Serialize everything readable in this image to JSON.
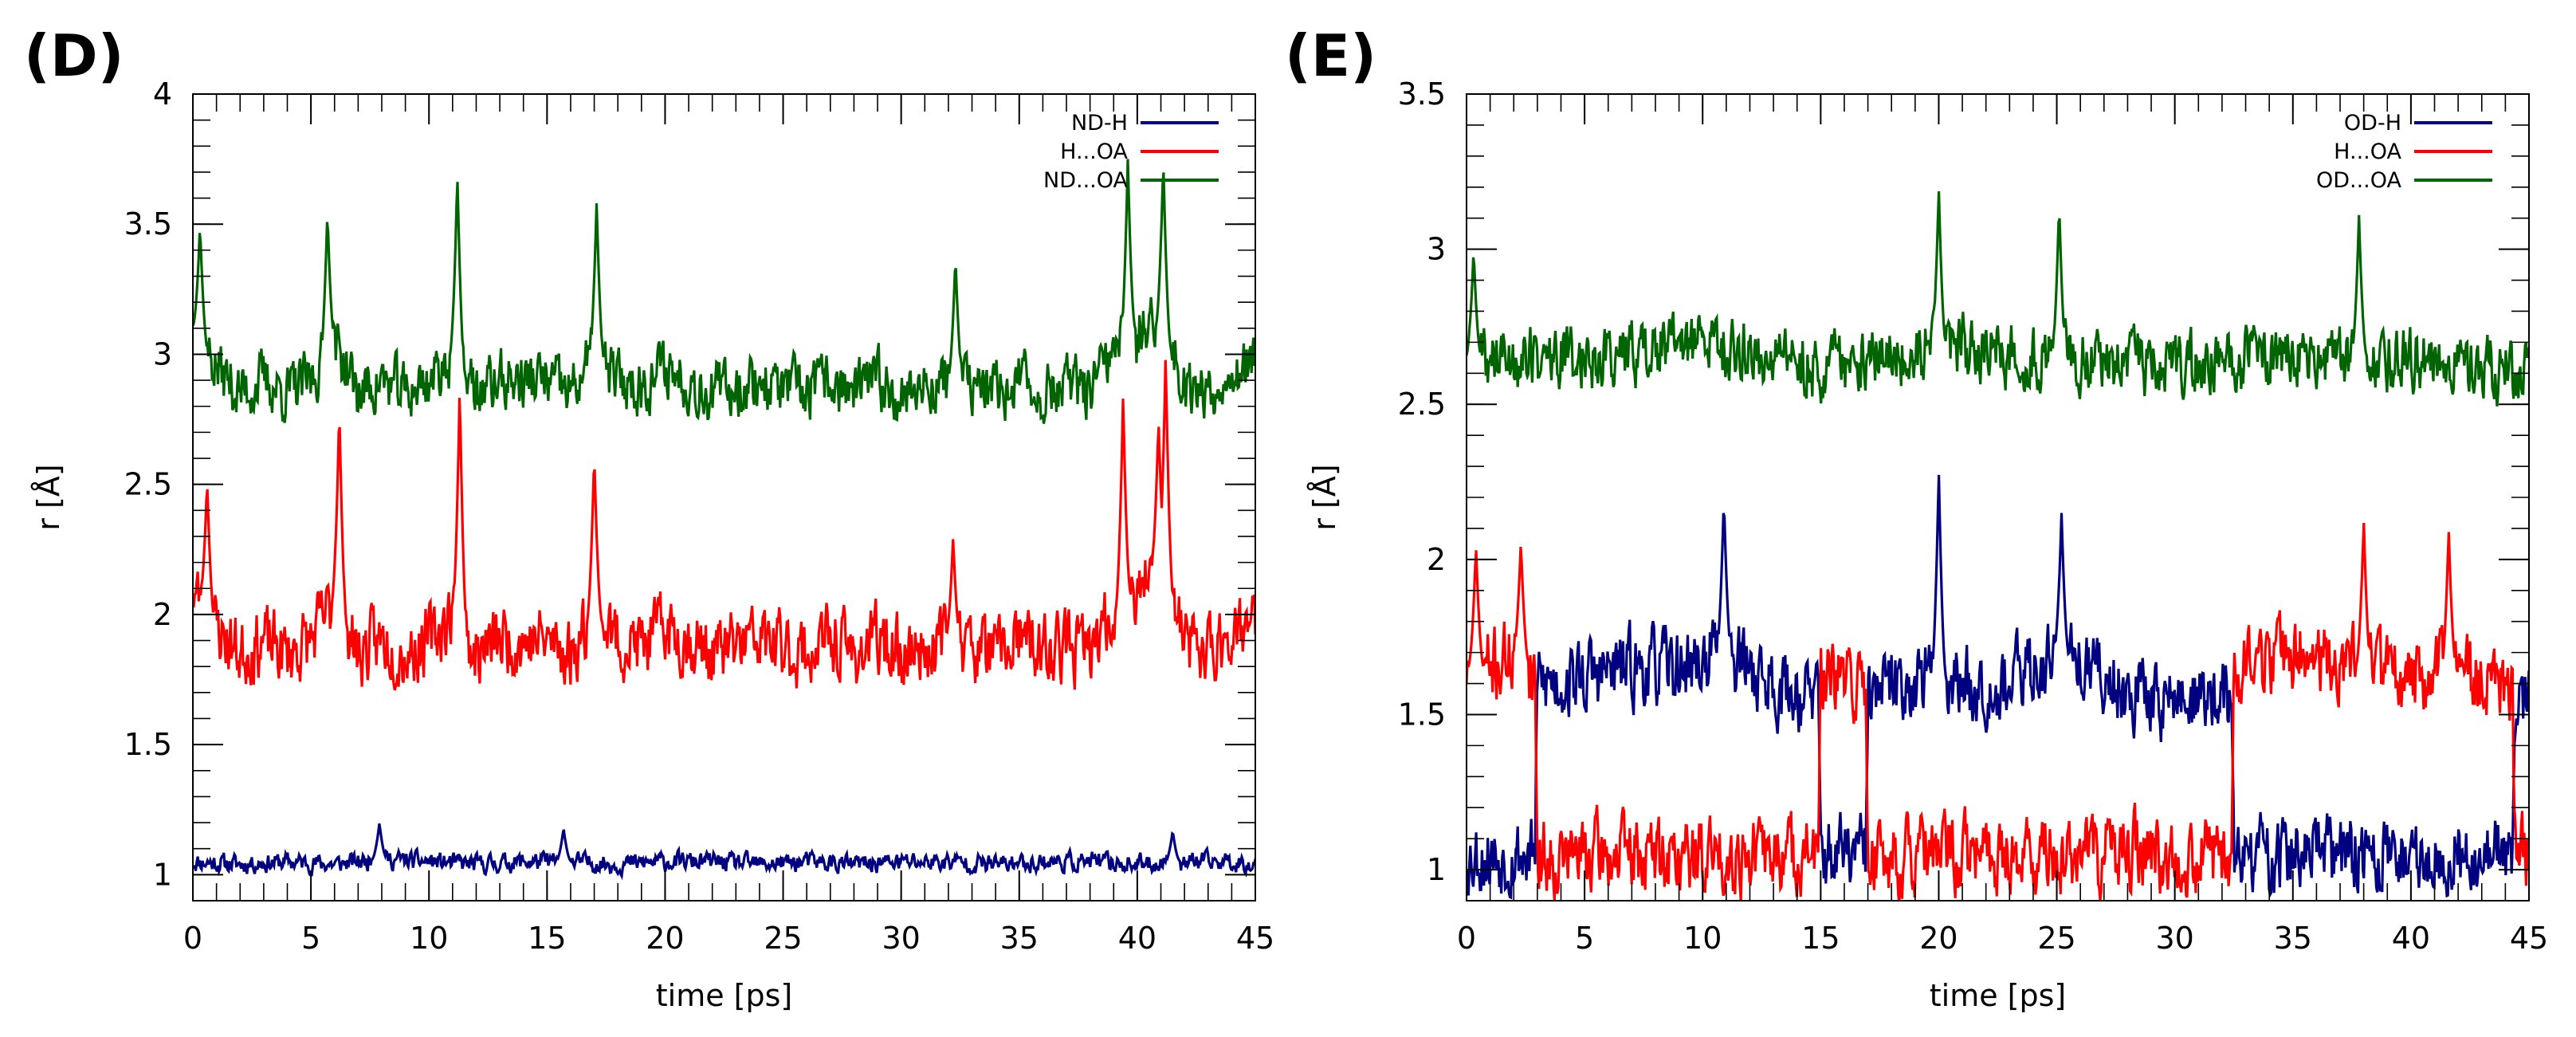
{
  "chart_data": [
    {
      "type": "line",
      "panel_label": "(D)",
      "xlabel": "time [ps]",
      "ylabel": "r [Å]",
      "xlim": [
        0,
        45
      ],
      "ylim": [
        0.9,
        4.0
      ],
      "xticks": [
        0,
        5,
        10,
        15,
        20,
        25,
        30,
        35,
        40,
        45
      ],
      "xtick_labels": [
        "0",
        "5",
        "10",
        "15",
        "20",
        "25",
        "30",
        "35",
        "40",
        "45"
      ],
      "yticks": [
        1,
        1.5,
        2,
        2.5,
        3,
        3.5,
        4
      ],
      "ytick_labels": [
        "1",
        "1.5",
        "2",
        "2.5",
        "3",
        "3.5",
        "4"
      ],
      "legend_position": "top-right",
      "series": [
        {
          "name": "ND-H",
          "color": "#000080",
          "x": [
            0,
            2,
            4,
            6,
            8,
            10,
            12,
            14,
            16,
            18,
            20,
            22,
            24,
            26,
            28,
            30,
            32,
            34,
            36,
            38,
            40,
            42,
            44,
            45
          ],
          "y": [
            1.05,
            1.04,
            1.05,
            1.04,
            1.06,
            1.05,
            1.04,
            1.05,
            1.05,
            1.04,
            1.05,
            1.05,
            1.04,
            1.05,
            1.04,
            1.05,
            1.05,
            1.04,
            1.05,
            1.05,
            1.04,
            1.05,
            1.05,
            1.04
          ],
          "noise": 0.035,
          "seed": 11,
          "spikes": [
            [
              7.9,
              1.2
            ],
            [
              15.7,
              1.18
            ],
            [
              41.5,
              1.17
            ]
          ]
        },
        {
          "name": "H...OA",
          "color": "#ff0000",
          "x": [
            0,
            1,
            2,
            3,
            4,
            5,
            6,
            7,
            8,
            9,
            10,
            11,
            12,
            13,
            14,
            15,
            16,
            17,
            18,
            19,
            20,
            21,
            22,
            23,
            24,
            25,
            26,
            27,
            28,
            29,
            30,
            31,
            32,
            33,
            34,
            35,
            36,
            37,
            38,
            39,
            40,
            41,
            42,
            43,
            44,
            45
          ],
          "y": [
            2.1,
            1.95,
            1.85,
            1.9,
            1.85,
            1.9,
            2.05,
            1.85,
            1.9,
            1.85,
            1.9,
            2.0,
            1.85,
            1.9,
            1.9,
            1.9,
            1.85,
            2.0,
            1.9,
            1.88,
            1.95,
            1.9,
            1.85,
            1.88,
            1.9,
            1.87,
            1.85,
            1.9,
            1.85,
            1.9,
            1.85,
            1.88,
            1.9,
            1.88,
            1.85,
            1.9,
            1.85,
            1.88,
            1.85,
            2.0,
            2.1,
            2.2,
            1.9,
            1.85,
            1.95,
            1.95
          ],
          "noise": 0.13,
          "seed": 23,
          "spikes": [
            [
              0.6,
              2.52
            ],
            [
              6.2,
              2.8
            ],
            [
              11.3,
              2.88
            ],
            [
              17.0,
              2.62
            ],
            [
              32.2,
              2.3
            ],
            [
              39.4,
              2.85
            ],
            [
              40.9,
              2.75
            ],
            [
              41.2,
              3.0
            ]
          ]
        },
        {
          "name": "ND...OA",
          "color": "#006400",
          "x": [
            0,
            1,
            2,
            3,
            4,
            5,
            6,
            7,
            8,
            9,
            10,
            11,
            12,
            13,
            14,
            15,
            16,
            17,
            18,
            19,
            20,
            21,
            22,
            23,
            24,
            25,
            26,
            27,
            28,
            29,
            30,
            31,
            32,
            33,
            34,
            35,
            36,
            37,
            38,
            39,
            40,
            41,
            42,
            43,
            44,
            45
          ],
          "y": [
            3.1,
            2.95,
            2.85,
            2.9,
            2.85,
            2.9,
            3.05,
            2.85,
            2.9,
            2.85,
            2.9,
            3.0,
            2.85,
            2.9,
            2.9,
            2.9,
            2.85,
            3.0,
            2.9,
            2.88,
            2.95,
            2.9,
            2.85,
            2.88,
            2.9,
            2.87,
            2.85,
            2.9,
            2.85,
            2.9,
            2.85,
            2.88,
            2.9,
            2.88,
            2.85,
            2.9,
            2.85,
            2.88,
            2.85,
            3.0,
            3.1,
            3.1,
            2.9,
            2.85,
            2.95,
            2.95
          ],
          "noise": 0.11,
          "seed": 37,
          "spikes": [
            [
              0.3,
              3.5
            ],
            [
              5.7,
              3.55
            ],
            [
              11.2,
              3.7
            ],
            [
              17.1,
              3.58
            ],
            [
              32.3,
              3.38
            ],
            [
              39.6,
              3.75
            ],
            [
              41.1,
              3.75
            ]
          ]
        }
      ]
    },
    {
      "type": "line",
      "panel_label": "(E)",
      "xlabel": "time [ps]",
      "ylabel": "r [Å]",
      "xlim": [
        0,
        45
      ],
      "ylim": [
        0.9,
        3.5
      ],
      "xticks": [
        0,
        5,
        10,
        15,
        20,
        25,
        30,
        35,
        40,
        45
      ],
      "xtick_labels": [
        "0",
        "5",
        "10",
        "15",
        "20",
        "25",
        "30",
        "35",
        "40",
        "45"
      ],
      "yticks": [
        1,
        1.5,
        2,
        2.5,
        3,
        3.5
      ],
      "ytick_labels": [
        "1",
        "1.5",
        "2",
        "2.5",
        "3",
        "3.5"
      ],
      "legend_position": "top-right",
      "series": [
        {
          "name": "OD-H",
          "color": "#000080",
          "x": [
            0,
            1,
            2,
            2.9,
            3.0,
            5,
            7,
            9,
            11,
            13,
            14.9,
            15.0,
            16.9,
            17.0,
            19,
            21,
            23,
            25,
            27,
            29,
            31,
            32.4,
            32.5,
            35,
            38,
            40,
            42,
            44.3,
            44.4,
            45
          ],
          "y": [
            1.05,
            1.04,
            1.05,
            1.05,
            1.6,
            1.62,
            1.65,
            1.65,
            1.7,
            1.6,
            1.55,
            1.05,
            1.05,
            1.55,
            1.62,
            1.6,
            1.6,
            1.7,
            1.62,
            1.55,
            1.55,
            1.55,
            1.04,
            1.05,
            1.05,
            1.04,
            1.05,
            1.05,
            1.55,
            1.55
          ],
          "noise": 0.12,
          "seed": 53,
          "spikes": [
            [
              10.9,
              2.2
            ],
            [
              20.0,
              2.29
            ],
            [
              25.2,
              2.15
            ]
          ]
        },
        {
          "name": "H...OA",
          "color": "#ff0000",
          "x": [
            0,
            1,
            2,
            2.9,
            3.0,
            5,
            7,
            9,
            11,
            13,
            14.9,
            15.0,
            16.9,
            17.0,
            19,
            21,
            23,
            25,
            27,
            29,
            31,
            32.4,
            32.5,
            35,
            38,
            40,
            42,
            44.3,
            44.4,
            45
          ],
          "y": [
            1.65,
            1.65,
            1.7,
            1.65,
            1.04,
            1.05,
            1.05,
            1.04,
            1.05,
            1.05,
            1.05,
            1.6,
            1.6,
            1.05,
            1.04,
            1.05,
            1.05,
            1.04,
            1.05,
            1.05,
            1.04,
            1.05,
            1.65,
            1.7,
            1.65,
            1.6,
            1.65,
            1.55,
            1.04,
            1.05
          ],
          "noise": 0.12,
          "seed": 71,
          "spikes": [
            [
              0.4,
              2.05
            ],
            [
              2.3,
              2.06
            ],
            [
              38.0,
              2.13
            ],
            [
              41.6,
              2.1
            ]
          ]
        },
        {
          "name": "OD...OA",
          "color": "#006400",
          "x": [
            0,
            5,
            10,
            15,
            20,
            25,
            30,
            35,
            40,
            45
          ],
          "y": [
            2.65,
            2.65,
            2.7,
            2.62,
            2.68,
            2.65,
            2.62,
            2.66,
            2.65,
            2.6
          ],
          "noise": 0.1,
          "seed": 89,
          "spikes": [
            [
              0.3,
              3.0
            ],
            [
              20.0,
              3.2
            ],
            [
              25.1,
              3.15
            ],
            [
              37.8,
              3.11
            ]
          ]
        }
      ]
    }
  ]
}
